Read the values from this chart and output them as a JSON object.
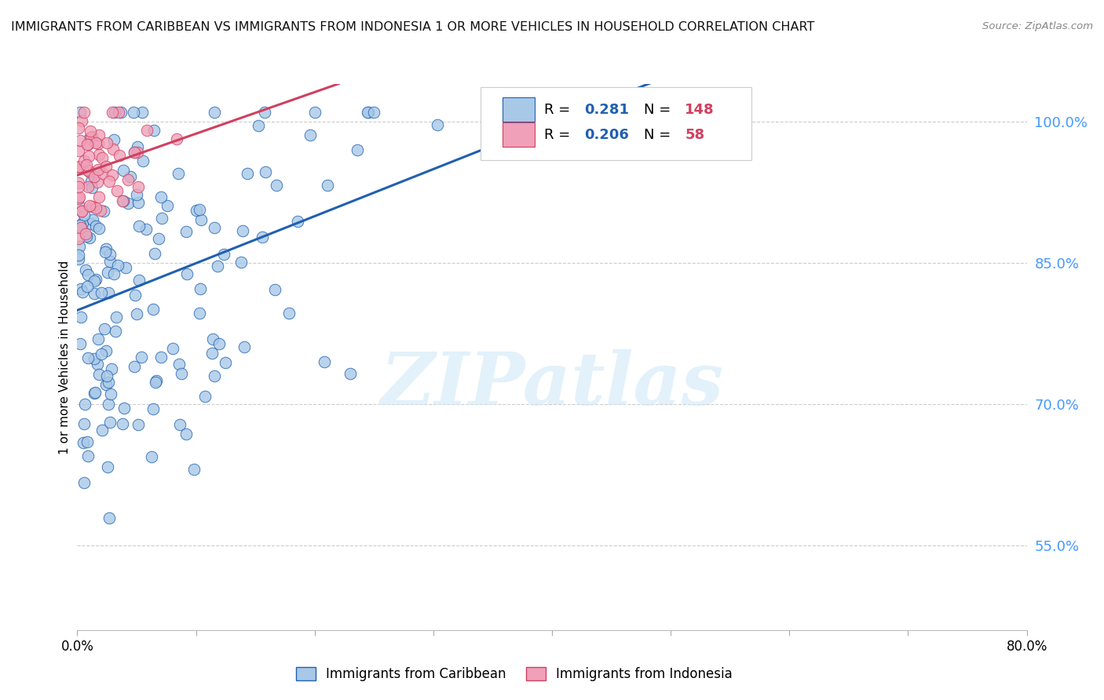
{
  "title": "IMMIGRANTS FROM CARIBBEAN VS IMMIGRANTS FROM INDONESIA 1 OR MORE VEHICLES IN HOUSEHOLD CORRELATION CHART",
  "source": "Source: ZipAtlas.com",
  "ylabel": "1 or more Vehicles in Household",
  "ytick_labels": [
    "100.0%",
    "85.0%",
    "70.0%",
    "55.0%"
  ],
  "ytick_values": [
    1.0,
    0.85,
    0.7,
    0.55
  ],
  "xlim": [
    0.0,
    0.8
  ],
  "ylim": [
    0.46,
    1.04
  ],
  "R_caribbean": 0.281,
  "N_caribbean": 148,
  "R_indonesia": 0.206,
  "N_indonesia": 58,
  "color_caribbean": "#a8c8e8",
  "color_indonesia": "#f0a0b8",
  "line_color_caribbean": "#2060b0",
  "line_color_indonesia": "#d04060",
  "watermark": "ZIPatlas",
  "legend_R_color": "#2060b0",
  "legend_N_color": "#d04060",
  "bg_color": "#ffffff",
  "grid_color": "#cccccc",
  "title_color": "#111111",
  "source_color": "#888888",
  "ytick_color": "#4499ff"
}
